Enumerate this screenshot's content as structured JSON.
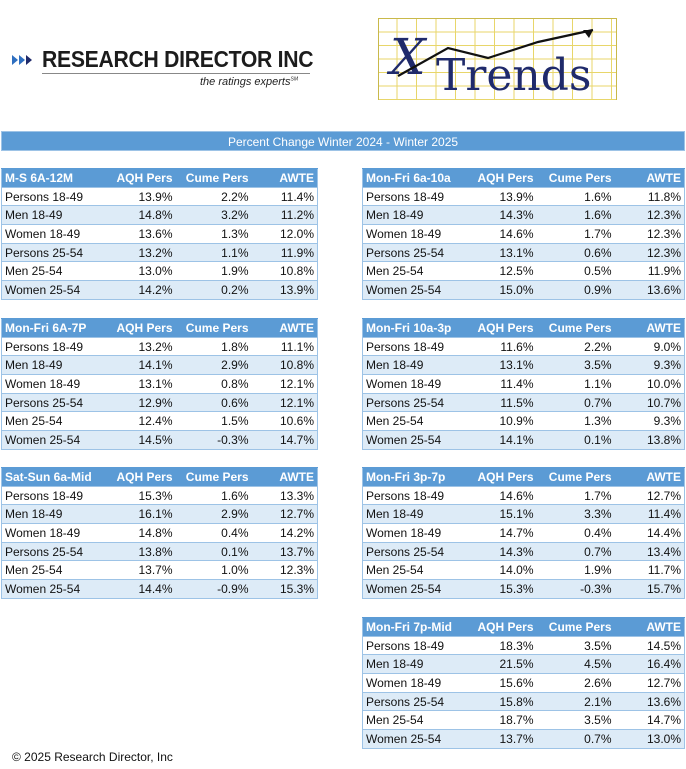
{
  "header": {
    "company_name": "RESEARCH DIRECTOR INC",
    "tagline": "the ratings experts",
    "tagline_mark": "SM",
    "product_logo_text_x": "X",
    "product_logo_text_rest": "Trends"
  },
  "banner": "Percent Change Winter 2024 - Winter 2025",
  "columns": [
    "AQH Pers",
    "Cume Pers",
    "AWTE"
  ],
  "tables": [
    {
      "daypart": "M-S 6A-12M",
      "rows": [
        {
          "demo": "Persons 18-49",
          "aqh": "13.9%",
          "cume": "2.2%",
          "awte": "11.4%"
        },
        {
          "demo": "Men 18-49",
          "aqh": "14.8%",
          "cume": "3.2%",
          "awte": "11.2%"
        },
        {
          "demo": "Women 18-49",
          "aqh": "13.6%",
          "cume": "1.3%",
          "awte": "12.0%"
        },
        {
          "demo": "Persons 25-54",
          "aqh": "13.2%",
          "cume": "1.1%",
          "awte": "11.9%"
        },
        {
          "demo": "Men 25-54",
          "aqh": "13.0%",
          "cume": "1.9%",
          "awte": "10.8%"
        },
        {
          "demo": "Women 25-54",
          "aqh": "14.2%",
          "cume": "0.2%",
          "awte": "13.9%"
        }
      ]
    },
    {
      "daypart": "Mon-Fri 6a-10a",
      "rows": [
        {
          "demo": "Persons 18-49",
          "aqh": "13.9%",
          "cume": "1.6%",
          "awte": "11.8%"
        },
        {
          "demo": "Men 18-49",
          "aqh": "14.3%",
          "cume": "1.6%",
          "awte": "12.3%"
        },
        {
          "demo": "Women 18-49",
          "aqh": "14.6%",
          "cume": "1.7%",
          "awte": "12.3%"
        },
        {
          "demo": "Persons 25-54",
          "aqh": "13.1%",
          "cume": "0.6%",
          "awte": "12.3%"
        },
        {
          "demo": "Men 25-54",
          "aqh": "12.5%",
          "cume": "0.5%",
          "awte": "11.9%"
        },
        {
          "demo": "Women 25-54",
          "aqh": "15.0%",
          "cume": "0.9%",
          "awte": "13.6%"
        }
      ]
    },
    {
      "daypart": "Mon-Fri 6A-7P",
      "rows": [
        {
          "demo": "Persons 18-49",
          "aqh": "13.2%",
          "cume": "1.8%",
          "awte": "11.1%"
        },
        {
          "demo": "Men 18-49",
          "aqh": "14.1%",
          "cume": "2.9%",
          "awte": "10.8%"
        },
        {
          "demo": "Women 18-49",
          "aqh": "13.1%",
          "cume": "0.8%",
          "awte": "12.1%"
        },
        {
          "demo": "Persons 25-54",
          "aqh": "12.9%",
          "cume": "0.6%",
          "awte": "12.1%"
        },
        {
          "demo": "Men 25-54",
          "aqh": "12.4%",
          "cume": "1.5%",
          "awte": "10.6%"
        },
        {
          "demo": "Women 25-54",
          "aqh": "14.5%",
          "cume": "-0.3%",
          "awte": "14.7%"
        }
      ]
    },
    {
      "daypart": "Mon-Fri 10a-3p",
      "rows": [
        {
          "demo": "Persons 18-49",
          "aqh": "11.6%",
          "cume": "2.2%",
          "awte": "9.0%"
        },
        {
          "demo": "Men 18-49",
          "aqh": "13.1%",
          "cume": "3.5%",
          "awte": "9.3%"
        },
        {
          "demo": "Women 18-49",
          "aqh": "11.4%",
          "cume": "1.1%",
          "awte": "10.0%"
        },
        {
          "demo": "Persons 25-54",
          "aqh": "11.5%",
          "cume": "0.7%",
          "awte": "10.7%"
        },
        {
          "demo": "Men 25-54",
          "aqh": "10.9%",
          "cume": "1.3%",
          "awte": "9.3%"
        },
        {
          "demo": "Women 25-54",
          "aqh": "14.1%",
          "cume": "0.1%",
          "awte": "13.8%"
        }
      ]
    },
    {
      "daypart": "Sat-Sun 6a-Mid",
      "rows": [
        {
          "demo": "Persons 18-49",
          "aqh": "15.3%",
          "cume": "1.6%",
          "awte": "13.3%"
        },
        {
          "demo": "Men 18-49",
          "aqh": "16.1%",
          "cume": "2.9%",
          "awte": "12.7%"
        },
        {
          "demo": "Women 18-49",
          "aqh": "14.8%",
          "cume": "0.4%",
          "awte": "14.2%"
        },
        {
          "demo": "Persons 25-54",
          "aqh": "13.8%",
          "cume": "0.1%",
          "awte": "13.7%"
        },
        {
          "demo": "Men 25-54",
          "aqh": "13.7%",
          "cume": "1.0%",
          "awte": "12.3%"
        },
        {
          "demo": "Women 25-54",
          "aqh": "14.4%",
          "cume": "-0.9%",
          "awte": "15.3%"
        }
      ]
    },
    {
      "daypart": "Mon-Fri 3p-7p",
      "rows": [
        {
          "demo": "Persons 18-49",
          "aqh": "14.6%",
          "cume": "1.7%",
          "awte": "12.7%"
        },
        {
          "demo": "Men 18-49",
          "aqh": "15.1%",
          "cume": "3.3%",
          "awte": "11.4%"
        },
        {
          "demo": "Women 18-49",
          "aqh": "14.7%",
          "cume": "0.4%",
          "awte": "14.4%"
        },
        {
          "demo": "Persons 25-54",
          "aqh": "14.3%",
          "cume": "0.7%",
          "awte": "13.4%"
        },
        {
          "demo": "Men 25-54",
          "aqh": "14.0%",
          "cume": "1.9%",
          "awte": "11.7%"
        },
        {
          "demo": "Women 25-54",
          "aqh": "15.3%",
          "cume": "-0.3%",
          "awte": "15.7%"
        }
      ]
    },
    {
      "daypart": "Mon-Fri 7p-Mid",
      "rows": [
        {
          "demo": "Persons 18-49",
          "aqh": "18.3%",
          "cume": "3.5%",
          "awte": "14.5%"
        },
        {
          "demo": "Men 18-49",
          "aqh": "21.5%",
          "cume": "4.5%",
          "awte": "16.4%"
        },
        {
          "demo": "Women 18-49",
          "aqh": "15.6%",
          "cume": "2.6%",
          "awte": "12.7%"
        },
        {
          "demo": "Persons 25-54",
          "aqh": "15.8%",
          "cume": "2.1%",
          "awte": "13.6%"
        },
        {
          "demo": "Men 25-54",
          "aqh": "18.7%",
          "cume": "3.5%",
          "awte": "14.7%"
        },
        {
          "demo": "Women 25-54",
          "aqh": "13.7%",
          "cume": "0.7%",
          "awte": "13.0%"
        }
      ]
    }
  ],
  "footer": {
    "copyright": "© 2025 Research Director, Inc"
  },
  "colors": {
    "header_blue": "#5b9bd5",
    "alt_row": "#ddebf7",
    "border_blue": "#9dc3e6",
    "logo_navy": "#1f2a6b",
    "logo_grid_yellow": "#f4e79a"
  }
}
